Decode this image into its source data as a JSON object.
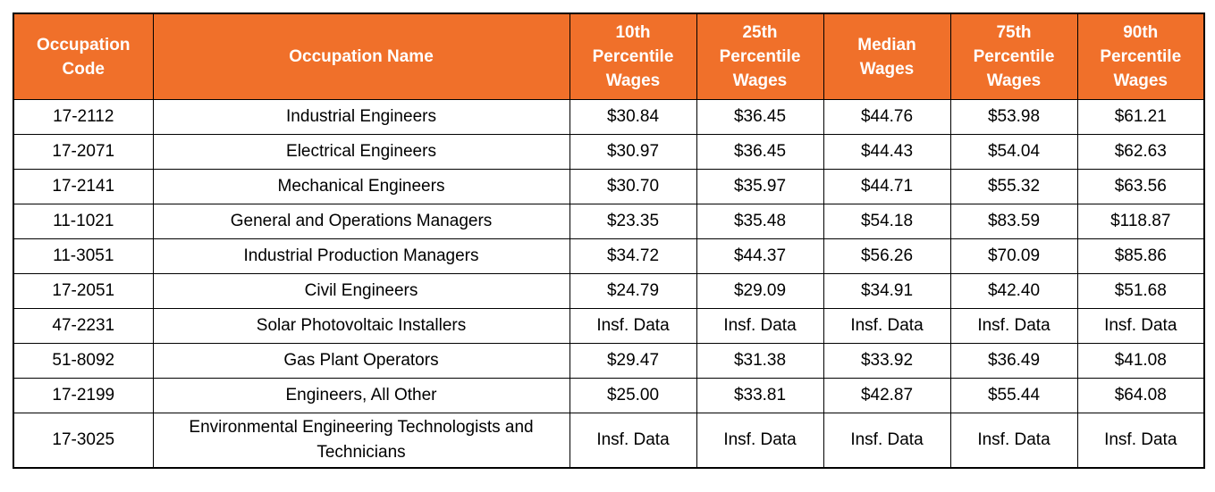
{
  "theme": {
    "header_bg": "#F0702A",
    "header_text": "#FFFFFF",
    "border_color": "#000000",
    "cell_text": "#000000",
    "page_bg": "#FFFFFF"
  },
  "table": {
    "columns": [
      {
        "key": "code",
        "label": "Occupation Code"
      },
      {
        "key": "name",
        "label": "Occupation Name"
      },
      {
        "key": "p10",
        "label": "10th Percentile Wages"
      },
      {
        "key": "p25",
        "label": "25th Percentile Wages"
      },
      {
        "key": "median",
        "label": "Median Wages"
      },
      {
        "key": "p75",
        "label": "75th Percentile Wages"
      },
      {
        "key": "p90",
        "label": "90th Percentile Wages"
      }
    ],
    "rows": [
      {
        "code": "17-2112",
        "name": "Industrial Engineers",
        "p10": "$30.84",
        "p25": "$36.45",
        "median": "$44.76",
        "p75": "$53.98",
        "p90": "$61.21"
      },
      {
        "code": "17-2071",
        "name": "Electrical Engineers",
        "p10": "$30.97",
        "p25": "$36.45",
        "median": "$44.43",
        "p75": "$54.04",
        "p90": "$62.63"
      },
      {
        "code": "17-2141",
        "name": "Mechanical Engineers",
        "p10": "$30.70",
        "p25": "$35.97",
        "median": "$44.71",
        "p75": "$55.32",
        "p90": "$63.56"
      },
      {
        "code": "11-1021",
        "name": "General and Operations Managers",
        "p10": "$23.35",
        "p25": "$35.48",
        "median": "$54.18",
        "p75": "$83.59",
        "p90": "$118.87"
      },
      {
        "code": "11-3051",
        "name": "Industrial Production Managers",
        "p10": "$34.72",
        "p25": "$44.37",
        "median": "$56.26",
        "p75": "$70.09",
        "p90": "$85.86"
      },
      {
        "code": "17-2051",
        "name": "Civil Engineers",
        "p10": "$24.79",
        "p25": "$29.09",
        "median": "$34.91",
        "p75": "$42.40",
        "p90": "$51.68"
      },
      {
        "code": "47-2231",
        "name": "Solar Photovoltaic Installers",
        "p10": "Insf. Data",
        "p25": "Insf. Data",
        "median": "Insf. Data",
        "p75": "Insf. Data",
        "p90": "Insf. Data"
      },
      {
        "code": "51-8092",
        "name": "Gas Plant Operators",
        "p10": "$29.47",
        "p25": "$31.38",
        "median": "$33.92",
        "p75": "$36.49",
        "p90": "$41.08"
      },
      {
        "code": "17-2199",
        "name": "Engineers, All Other",
        "p10": "$25.00",
        "p25": "$33.81",
        "median": "$42.87",
        "p75": "$55.44",
        "p90": "$64.08"
      },
      {
        "code": "17-3025",
        "name": "Environmental Engineering Technologists and Technicians",
        "p10": "Insf. Data",
        "p25": "Insf. Data",
        "median": "Insf. Data",
        "p75": "Insf. Data",
        "p90": "Insf. Data"
      }
    ]
  },
  "chart_data": {
    "type": "table",
    "title": "",
    "columns": [
      "Occupation Code",
      "Occupation Name",
      "10th Percentile Wages",
      "25th Percentile Wages",
      "Median Wages",
      "75th Percentile Wages",
      "90th Percentile Wages"
    ],
    "rows": [
      [
        "17-2112",
        "Industrial Engineers",
        "$30.84",
        "$36.45",
        "$44.76",
        "$53.98",
        "$61.21"
      ],
      [
        "17-2071",
        "Electrical Engineers",
        "$30.97",
        "$36.45",
        "$44.43",
        "$54.04",
        "$62.63"
      ],
      [
        "17-2141",
        "Mechanical Engineers",
        "$30.70",
        "$35.97",
        "$44.71",
        "$55.32",
        "$63.56"
      ],
      [
        "11-1021",
        "General and Operations Managers",
        "$23.35",
        "$35.48",
        "$54.18",
        "$83.59",
        "$118.87"
      ],
      [
        "11-3051",
        "Industrial Production Managers",
        "$34.72",
        "$44.37",
        "$56.26",
        "$70.09",
        "$85.86"
      ],
      [
        "17-2051",
        "Civil Engineers",
        "$24.79",
        "$29.09",
        "$34.91",
        "$42.40",
        "$51.68"
      ],
      [
        "47-2231",
        "Solar Photovoltaic Installers",
        "Insf. Data",
        "Insf. Data",
        "Insf. Data",
        "Insf. Data",
        "Insf. Data"
      ],
      [
        "51-8092",
        "Gas Plant Operators",
        "$29.47",
        "$31.38",
        "$33.92",
        "$36.49",
        "$41.08"
      ],
      [
        "17-2199",
        "Engineers, All Other",
        "$25.00",
        "$33.81",
        "$42.87",
        "$55.44",
        "$64.08"
      ],
      [
        "17-3025",
        "Environmental Engineering Technologists and Technicians",
        "Insf. Data",
        "Insf. Data",
        "Insf. Data",
        "Insf. Data",
        "Insf. Data"
      ]
    ]
  }
}
